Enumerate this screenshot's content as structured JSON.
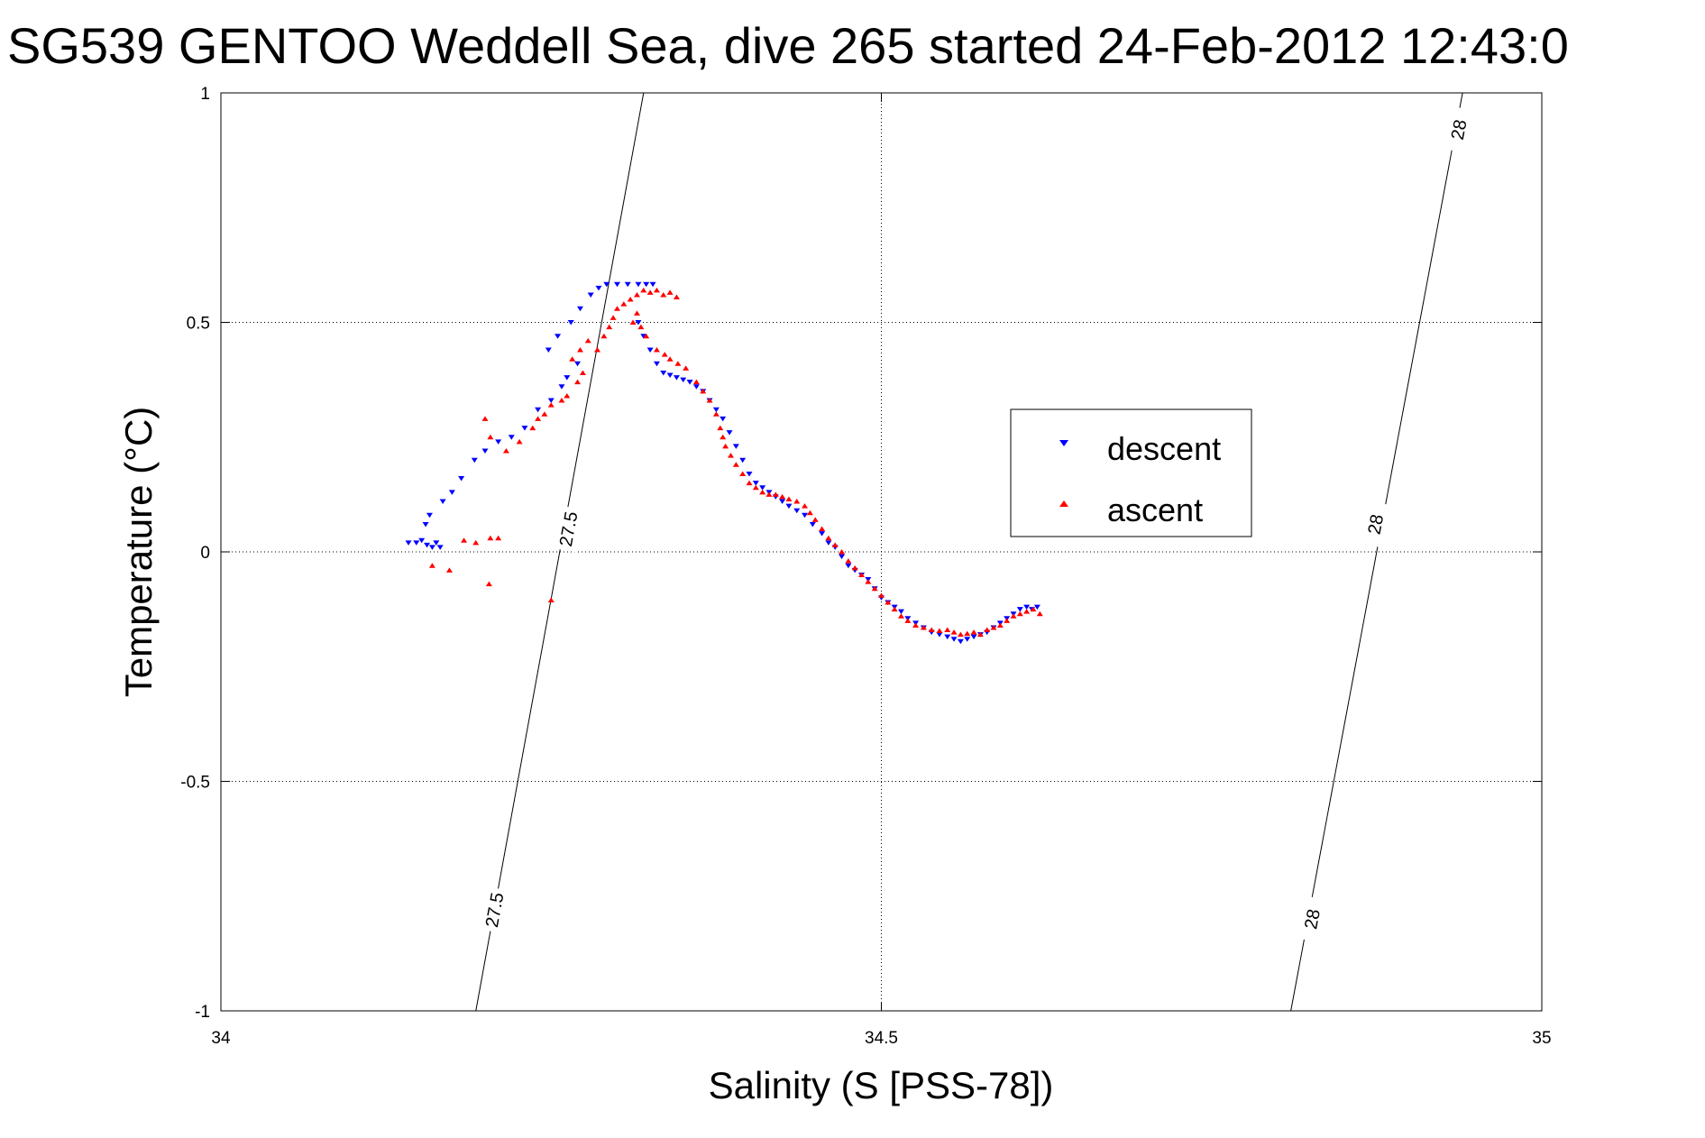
{
  "chart_data": {
    "type": "scatter",
    "title": "SG539 GENTOO Weddell Sea, dive 265 started 24-Feb-2012 12:43:0",
    "xlabel": "Salinity (S [PSS-78])",
    "ylabel": "Temperature (°C)",
    "xlim": [
      34,
      35
    ],
    "ylim": [
      -1,
      1
    ],
    "x_ticks": [
      34,
      34.5,
      35
    ],
    "x_tick_labels": [
      "34",
      "34.5",
      "35"
    ],
    "y_ticks": [
      -1,
      -0.5,
      0,
      0.5,
      1
    ],
    "y_tick_labels": [
      "-1",
      "-0.5",
      "0",
      "0.5",
      "1"
    ],
    "grid": true,
    "legend_position": "center-right",
    "contours": [
      {
        "level_label": "27.5",
        "points": [
          [
            34.193,
            -1.0
          ],
          [
            34.32,
            1.0
          ]
        ],
        "labels_at": [
          [
            34.207,
            -0.78
          ],
          [
            34.263,
            0.05
          ]
        ]
      },
      {
        "level_label": "28",
        "points": [
          [
            34.81,
            -1.0
          ],
          [
            34.94,
            1.0
          ]
        ],
        "labels_at": [
          [
            34.826,
            -0.8
          ],
          [
            34.874,
            0.06
          ],
          [
            34.937,
            0.92
          ]
        ]
      }
    ],
    "series": [
      {
        "name": "descent",
        "color": "#0000ff",
        "marker": "triangle-down",
        "points": [
          [
            34.142,
            0.02
          ],
          [
            34.148,
            0.02
          ],
          [
            34.152,
            0.025
          ],
          [
            34.156,
            0.015
          ],
          [
            34.16,
            0.01
          ],
          [
            34.163,
            0.02
          ],
          [
            34.166,
            0.01
          ],
          [
            34.155,
            0.06
          ],
          [
            34.158,
            0.08
          ],
          [
            34.168,
            0.11
          ],
          [
            34.175,
            0.13
          ],
          [
            34.182,
            0.16
          ],
          [
            34.192,
            0.2
          ],
          [
            34.2,
            0.22
          ],
          [
            34.21,
            0.24
          ],
          [
            34.22,
            0.25
          ],
          [
            34.23,
            0.27
          ],
          [
            34.24,
            0.31
          ],
          [
            34.25,
            0.33
          ],
          [
            34.258,
            0.36
          ],
          [
            34.262,
            0.38
          ],
          [
            34.27,
            0.41
          ],
          [
            34.248,
            0.44
          ],
          [
            34.255,
            0.47
          ],
          [
            34.265,
            0.5
          ],
          [
            34.272,
            0.53
          ],
          [
            34.28,
            0.56
          ],
          [
            34.286,
            0.575
          ],
          [
            34.292,
            0.583
          ],
          [
            34.3,
            0.583
          ],
          [
            34.308,
            0.583
          ],
          [
            34.316,
            0.583
          ],
          [
            34.322,
            0.583
          ],
          [
            34.327,
            0.583
          ],
          [
            34.316,
            0.5
          ],
          [
            34.32,
            0.47
          ],
          [
            34.325,
            0.44
          ],
          [
            34.33,
            0.41
          ],
          [
            34.335,
            0.39
          ],
          [
            34.34,
            0.385
          ],
          [
            34.345,
            0.38
          ],
          [
            34.35,
            0.375
          ],
          [
            34.355,
            0.37
          ],
          [
            34.36,
            0.36
          ],
          [
            34.365,
            0.35
          ],
          [
            34.37,
            0.33
          ],
          [
            34.375,
            0.31
          ],
          [
            34.38,
            0.29
          ],
          [
            34.385,
            0.26
          ],
          [
            34.39,
            0.23
          ],
          [
            34.395,
            0.2
          ],
          [
            34.4,
            0.17
          ],
          [
            34.405,
            0.15
          ],
          [
            34.41,
            0.14
          ],
          [
            34.415,
            0.13
          ],
          [
            34.42,
            0.12
          ],
          [
            34.425,
            0.11
          ],
          [
            34.43,
            0.1
          ],
          [
            34.436,
            0.09
          ],
          [
            34.442,
            0.08
          ],
          [
            34.448,
            0.06
          ],
          [
            34.455,
            0.04
          ],
          [
            34.46,
            0.02
          ],
          [
            34.465,
            0.01
          ],
          [
            34.47,
            -0.01
          ],
          [
            34.475,
            -0.03
          ],
          [
            34.48,
            -0.04
          ],
          [
            34.485,
            -0.05
          ],
          [
            34.49,
            -0.06
          ],
          [
            34.495,
            -0.08
          ],
          [
            34.5,
            -0.1
          ],
          [
            34.505,
            -0.11
          ],
          [
            34.51,
            -0.12
          ],
          [
            34.515,
            -0.13
          ],
          [
            34.52,
            -0.145
          ],
          [
            34.526,
            -0.155
          ],
          [
            34.532,
            -0.165
          ],
          [
            34.538,
            -0.175
          ],
          [
            34.544,
            -0.18
          ],
          [
            34.55,
            -0.185
          ],
          [
            34.555,
            -0.19
          ],
          [
            34.56,
            -0.195
          ],
          [
            34.565,
            -0.19
          ],
          [
            34.57,
            -0.185
          ],
          [
            34.575,
            -0.18
          ],
          [
            34.58,
            -0.175
          ],
          [
            34.585,
            -0.165
          ],
          [
            34.59,
            -0.155
          ],
          [
            34.595,
            -0.145
          ],
          [
            34.6,
            -0.135
          ],
          [
            34.605,
            -0.125
          ],
          [
            34.61,
            -0.12
          ],
          [
            34.614,
            -0.125
          ],
          [
            34.618,
            -0.12
          ]
        ]
      },
      {
        "name": "ascent",
        "color": "#ff0000",
        "marker": "triangle-up",
        "points": [
          [
            34.16,
            -0.03
          ],
          [
            34.173,
            -0.04
          ],
          [
            34.184,
            0.025
          ],
          [
            34.193,
            0.02
          ],
          [
            34.203,
            -0.07
          ],
          [
            34.204,
            0.03
          ],
          [
            34.21,
            0.03
          ],
          [
            34.25,
            -0.105
          ],
          [
            34.2,
            0.29
          ],
          [
            34.204,
            0.25
          ],
          [
            34.216,
            0.22
          ],
          [
            34.226,
            0.24
          ],
          [
            34.236,
            0.27
          ],
          [
            34.24,
            0.29
          ],
          [
            34.245,
            0.3
          ],
          [
            34.25,
            0.32
          ],
          [
            34.258,
            0.33
          ],
          [
            34.262,
            0.34
          ],
          [
            34.27,
            0.37
          ],
          [
            34.274,
            0.39
          ],
          [
            34.266,
            0.42
          ],
          [
            34.272,
            0.44
          ],
          [
            34.278,
            0.46
          ],
          [
            34.285,
            0.44
          ],
          [
            34.29,
            0.47
          ],
          [
            34.294,
            0.49
          ],
          [
            34.297,
            0.51
          ],
          [
            34.3,
            0.53
          ],
          [
            34.305,
            0.54
          ],
          [
            34.31,
            0.55
          ],
          [
            34.315,
            0.56
          ],
          [
            34.32,
            0.57
          ],
          [
            34.325,
            0.565
          ],
          [
            34.33,
            0.57
          ],
          [
            34.335,
            0.56
          ],
          [
            34.34,
            0.565
          ],
          [
            34.345,
            0.555
          ],
          [
            34.315,
            0.52
          ],
          [
            34.312,
            0.5
          ],
          [
            34.318,
            0.49
          ],
          [
            34.322,
            0.47
          ],
          [
            34.33,
            0.44
          ],
          [
            34.336,
            0.43
          ],
          [
            34.34,
            0.42
          ],
          [
            34.346,
            0.41
          ],
          [
            34.352,
            0.4
          ],
          [
            34.36,
            0.37
          ],
          [
            34.365,
            0.35
          ],
          [
            34.37,
            0.33
          ],
          [
            34.375,
            0.3
          ],
          [
            34.378,
            0.27
          ],
          [
            34.38,
            0.25
          ],
          [
            34.382,
            0.23
          ],
          [
            34.386,
            0.21
          ],
          [
            34.39,
            0.19
          ],
          [
            34.395,
            0.17
          ],
          [
            34.4,
            0.15
          ],
          [
            34.405,
            0.14
          ],
          [
            34.41,
            0.13
          ],
          [
            34.415,
            0.125
          ],
          [
            34.42,
            0.125
          ],
          [
            34.425,
            0.12
          ],
          [
            34.43,
            0.115
          ],
          [
            34.436,
            0.11
          ],
          [
            34.442,
            0.1
          ],
          [
            34.446,
            0.085
          ],
          [
            34.45,
            0.07
          ],
          [
            34.455,
            0.05
          ],
          [
            34.46,
            0.03
          ],
          [
            34.465,
            0.015
          ],
          [
            34.47,
            0.0
          ],
          [
            34.475,
            -0.02
          ],
          [
            34.48,
            -0.035
          ],
          [
            34.485,
            -0.05
          ],
          [
            34.49,
            -0.065
          ],
          [
            34.495,
            -0.08
          ],
          [
            34.5,
            -0.095
          ],
          [
            34.505,
            -0.11
          ],
          [
            34.51,
            -0.125
          ],
          [
            34.515,
            -0.14
          ],
          [
            34.52,
            -0.15
          ],
          [
            34.526,
            -0.16
          ],
          [
            34.532,
            -0.165
          ],
          [
            34.538,
            -0.17
          ],
          [
            34.544,
            -0.172
          ],
          [
            34.55,
            -0.17
          ],
          [
            34.555,
            -0.175
          ],
          [
            34.56,
            -0.18
          ],
          [
            34.565,
            -0.178
          ],
          [
            34.57,
            -0.175
          ],
          [
            34.575,
            -0.18
          ],
          [
            34.58,
            -0.17
          ],
          [
            34.585,
            -0.165
          ],
          [
            34.59,
            -0.16
          ],
          [
            34.595,
            -0.15
          ],
          [
            34.6,
            -0.14
          ],
          [
            34.605,
            -0.135
          ],
          [
            34.61,
            -0.13
          ],
          [
            34.615,
            -0.125
          ],
          [
            34.62,
            -0.135
          ]
        ]
      }
    ]
  }
}
